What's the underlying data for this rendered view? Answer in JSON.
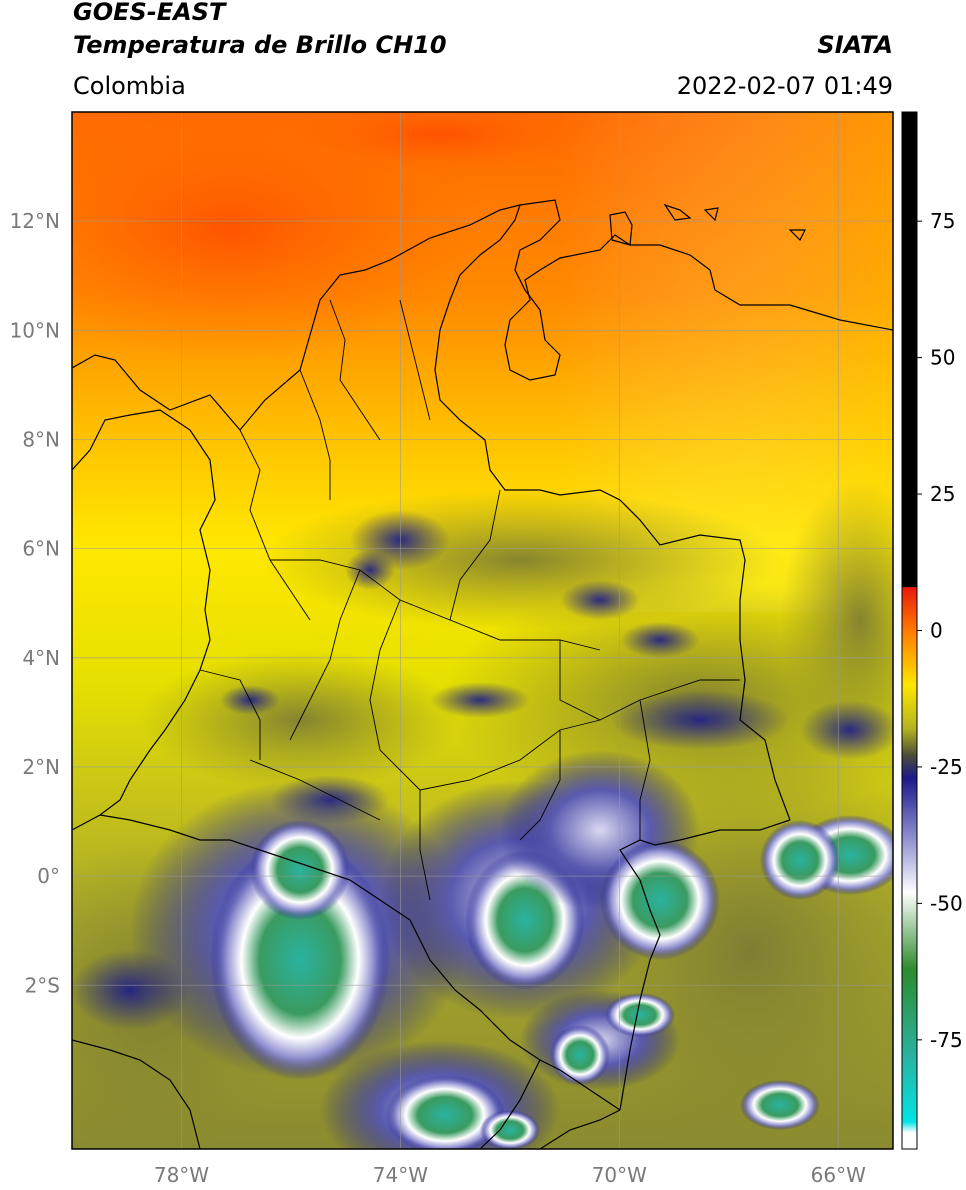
{
  "header": {
    "satellite": "GOES-EAST",
    "product": "Temperatura de Brillo CH10",
    "agency": "SIATA",
    "region": "Colombia",
    "datetime": "2022-02-07 01:49"
  },
  "map": {
    "lon_range": [
      -80,
      -65
    ],
    "lat_range": [
      -5,
      14
    ],
    "lat_ticks": [
      {
        "value": 12,
        "label": "12°N"
      },
      {
        "value": 10,
        "label": "10°N"
      },
      {
        "value": 8,
        "label": "8°N"
      },
      {
        "value": 6,
        "label": "6°N"
      },
      {
        "value": 4,
        "label": "4°N"
      },
      {
        "value": 2,
        "label": "2°N"
      },
      {
        "value": 0,
        "label": "0°"
      },
      {
        "value": -2,
        "label": "2°S"
      }
    ],
    "lon_ticks": [
      {
        "value": -78,
        "label": "78°W"
      },
      {
        "value": -74,
        "label": "74°W"
      },
      {
        "value": -70,
        "label": "70°W"
      },
      {
        "value": -66,
        "label": "66°W"
      }
    ]
  },
  "colorbar": {
    "range": [
      -95,
      95
    ],
    "ticks": [
      {
        "value": 75,
        "label": "75"
      },
      {
        "value": 50,
        "label": "50"
      },
      {
        "value": 25,
        "label": "25"
      },
      {
        "value": 0,
        "label": "0"
      },
      {
        "value": -25,
        "label": "-25"
      },
      {
        "value": -50,
        "label": "-50"
      },
      {
        "value": -75,
        "label": "-75"
      }
    ],
    "stops": [
      {
        "value": 95,
        "color": "#000000"
      },
      {
        "value": 8,
        "color": "#000000"
      },
      {
        "value": 7.9,
        "color": "#e81a0a"
      },
      {
        "value": 0,
        "color": "#ff7a00"
      },
      {
        "value": -10,
        "color": "#ffe600"
      },
      {
        "value": -18,
        "color": "#b4b420"
      },
      {
        "value": -23,
        "color": "#4a4a3a"
      },
      {
        "value": -27,
        "color": "#1a1a8a"
      },
      {
        "value": -38,
        "color": "#8f8fd0"
      },
      {
        "value": -48,
        "color": "#ffffff"
      },
      {
        "value": -62,
        "color": "#2e8b2e"
      },
      {
        "value": -78,
        "color": "#2ab3a0"
      },
      {
        "value": -90,
        "color": "#00e5e5"
      },
      {
        "value": -92,
        "color": "#ffffff"
      },
      {
        "value": -95,
        "color": "#ffffff"
      }
    ]
  }
}
